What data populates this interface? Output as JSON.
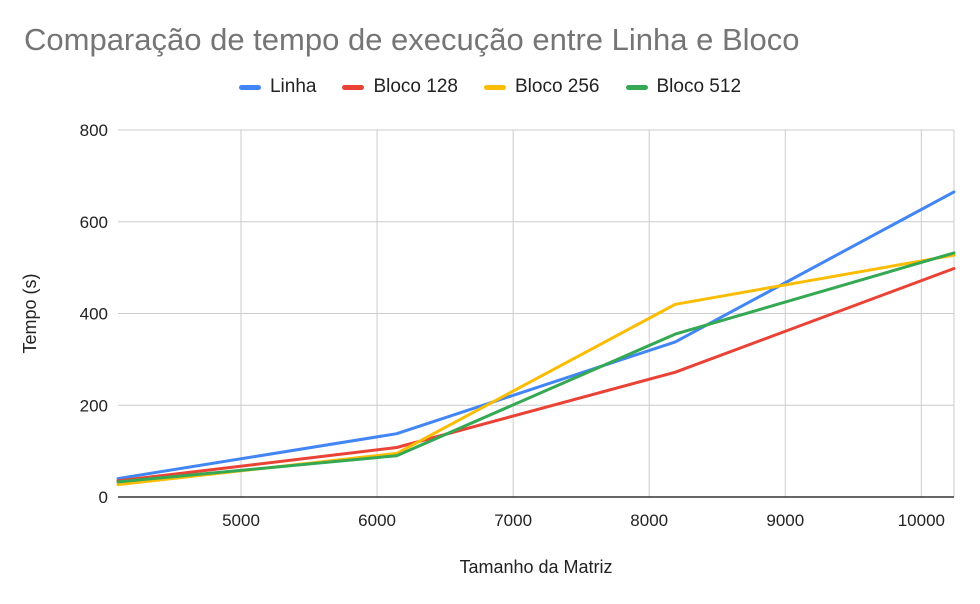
{
  "chart_data": {
    "type": "line",
    "title": "Comparação de tempo de execução entre Linha e Bloco",
    "xlabel": "Tamanho da Matriz",
    "ylabel": "Tempo (s)",
    "xlim": [
      4096,
      10240
    ],
    "ylim": [
      0,
      800
    ],
    "xticks": [
      5000,
      6000,
      7000,
      8000,
      9000,
      10000
    ],
    "yticks": [
      0,
      200,
      400,
      600,
      800
    ],
    "grid": true,
    "legend_position": "top",
    "x": [
      4096,
      6144,
      8192,
      10240
    ],
    "series": [
      {
        "name": "Linha",
        "color": "#4285f4",
        "values": [
          40,
          138,
          338,
          665
        ]
      },
      {
        "name": "Bloco 128",
        "color": "#ea4335",
        "values": [
          35,
          108,
          272,
          498
        ]
      },
      {
        "name": "Bloco 256",
        "color": "#fbbc04",
        "values": [
          27,
          95,
          420,
          527
        ]
      },
      {
        "name": "Bloco 512",
        "color": "#34a853",
        "values": [
          33,
          90,
          355,
          532
        ]
      }
    ]
  }
}
